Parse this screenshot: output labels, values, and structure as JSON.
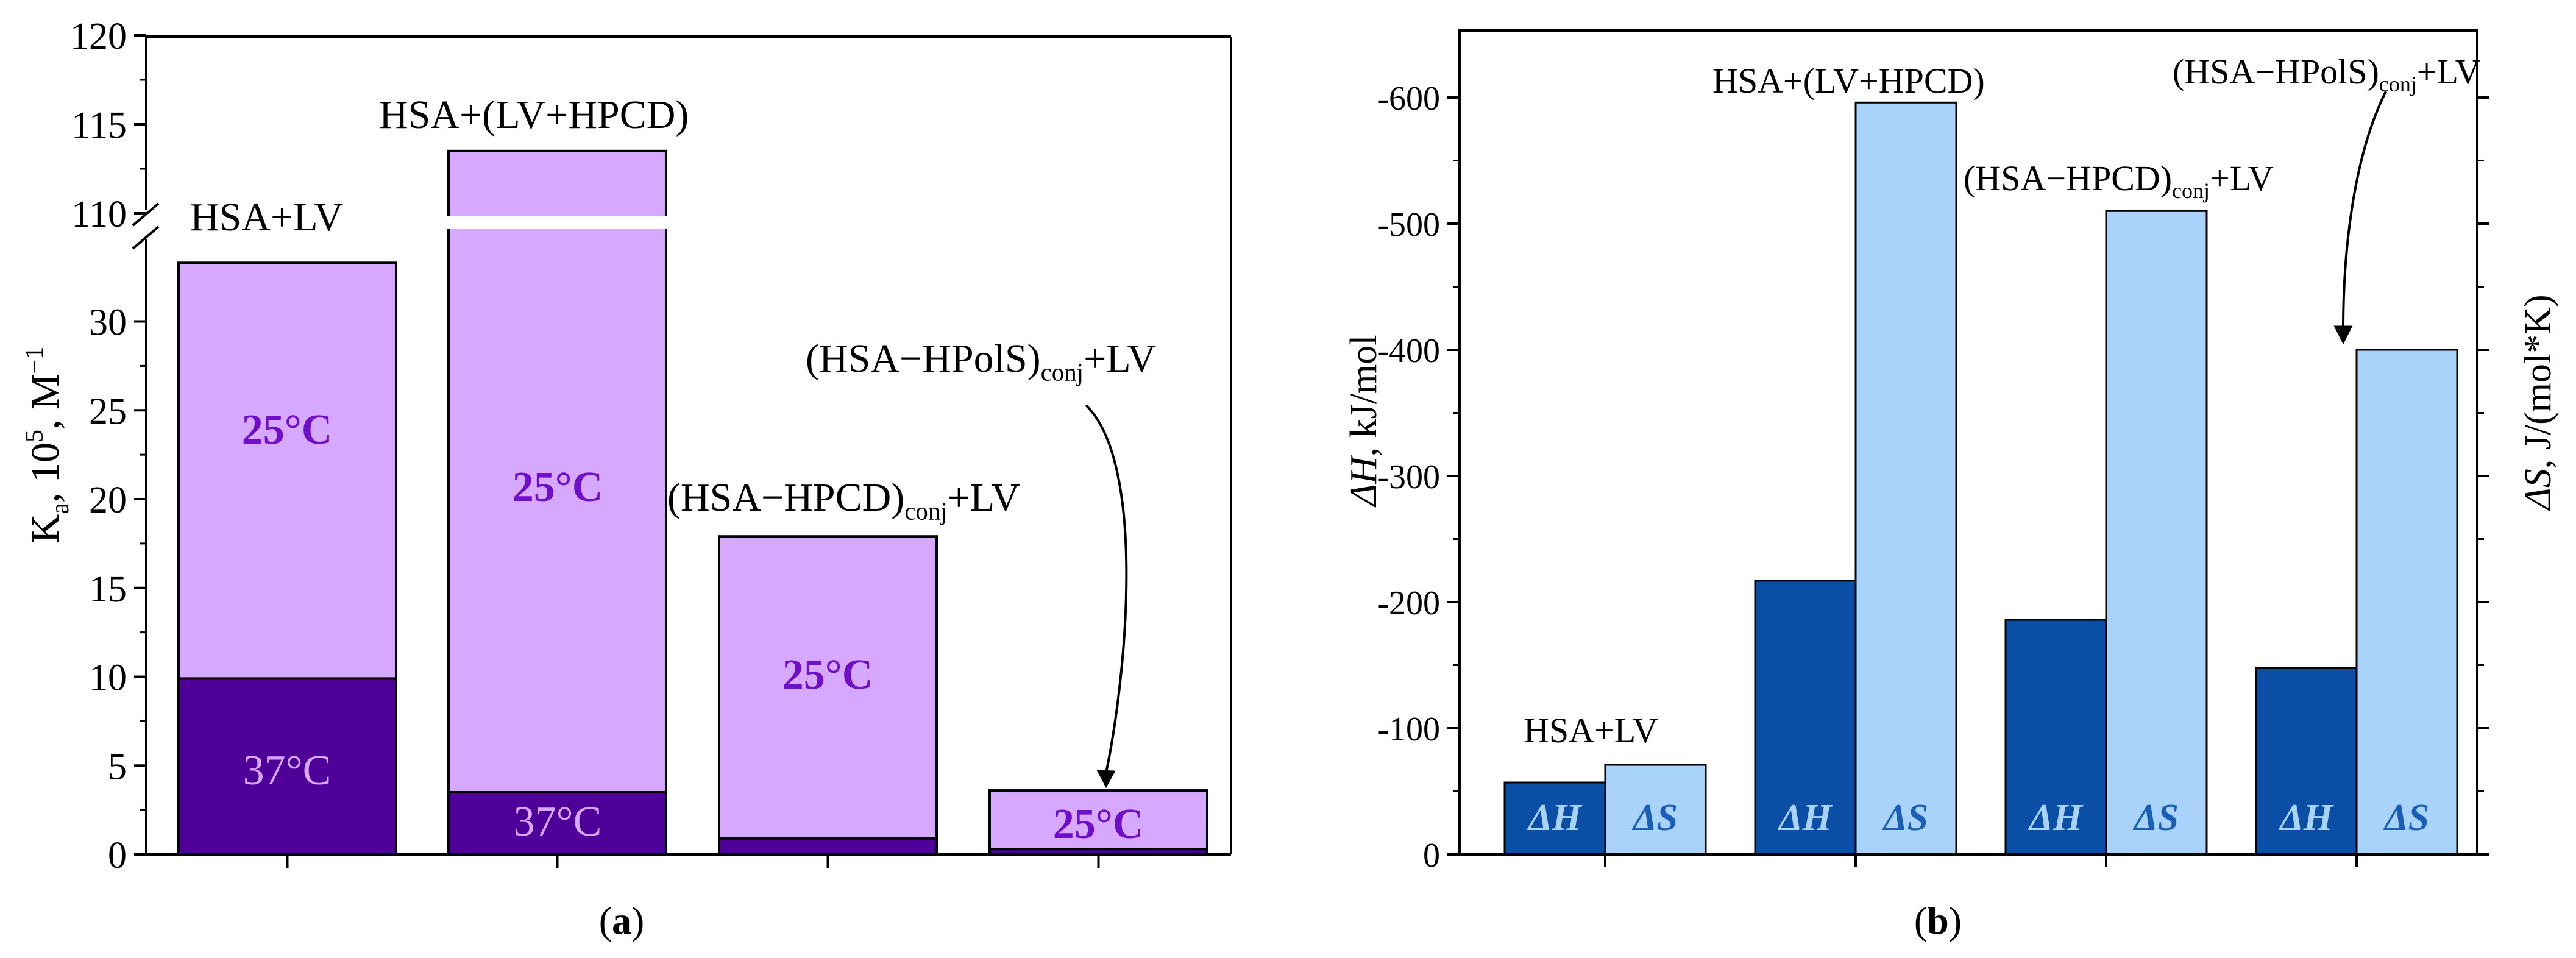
{
  "panels": {
    "a": {
      "caption_prefix": "(",
      "caption_letter": "a",
      "caption_suffix": ")"
    },
    "b": {
      "caption_prefix": "(",
      "caption_letter": "b",
      "caption_suffix": ")"
    }
  },
  "colors": {
    "purple_light": "#d6a8ff",
    "purple_dark": "#4f0099",
    "purple_label": "#6f10c8",
    "purple_label_on_dark": "#d6a8ff",
    "blue_dark": "#0a4ea6",
    "blue_light": "#a9d3fb",
    "blue_text_on_dark": "#a9d3fb",
    "blue_text_on_light": "#1a5fb4",
    "axis": "#000000",
    "background": "#ffffff"
  },
  "chart_data": [
    {
      "type": "bar",
      "panel": "a",
      "stacking": "overlaid",
      "ylabel": {
        "base": "K",
        "sub": "a",
        "mid": ", 10",
        "sup": "5",
        "unit": ", M",
        "unit_sup": "−1"
      },
      "y_axis_break": {
        "lower_range": [
          0,
          35
        ],
        "upper_range": [
          108,
          120
        ],
        "lower_ticks": [
          "0",
          "5",
          "10",
          "15",
          "20",
          "25",
          "30"
        ],
        "upper_ticks": [
          "110",
          "115",
          "120"
        ]
      },
      "categories": [
        "HSA+LV",
        "HSA+(LV+HPCD)",
        "(HSA−HPCD)conj+LV",
        "(HSA−HPolS)conj+LV"
      ],
      "category_labels": [
        {
          "main": "HSA+LV",
          "sub": "",
          "tail": ""
        },
        {
          "main": "HSA+(LV+HPCD)",
          "sub": "",
          "tail": ""
        },
        {
          "main": "(HSA−HPCD)",
          "sub": "conj",
          "tail": "+LV"
        },
        {
          "main": "(HSA−HPolS)",
          "sub": "conj",
          "tail": "+LV"
        }
      ],
      "series": [
        {
          "name": "25°C",
          "values": [
            33.3,
            113.5,
            17.9,
            3.6
          ]
        },
        {
          "name": "37°C",
          "values": [
            9.9,
            3.5,
            0.9,
            0.3
          ]
        }
      ],
      "bar_labels": [
        {
          "series": 0,
          "bar": 0,
          "text": "25°C"
        },
        {
          "series": 0,
          "bar": 1,
          "text": "25°C"
        },
        {
          "series": 0,
          "bar": 2,
          "text": "25°C"
        },
        {
          "series": 0,
          "bar": 3,
          "text": "25°C"
        },
        {
          "series": 1,
          "bar": 0,
          "text": "37°C"
        },
        {
          "series": 1,
          "bar": 1,
          "text": "37°C"
        }
      ]
    },
    {
      "type": "bar",
      "panel": "b",
      "ylabel_left": {
        "delta": "ΔH",
        "unit": ", kJ/mol"
      },
      "ylabel_right": {
        "delta": "ΔS",
        "unit": ", J/(mol*K)"
      },
      "ylim": [
        0,
        -650
      ],
      "y_ticks": [
        "0",
        "-100",
        "-200",
        "-300",
        "-400",
        "-500",
        "-600"
      ],
      "categories": [
        "HSA+LV",
        "HSA+(LV+HPCD)",
        "(HSA−HPCD)conj+LV",
        "(HSA−HPolS)conj+LV"
      ],
      "category_labels": [
        {
          "main": "HSA+LV",
          "sub": "",
          "tail": ""
        },
        {
          "main": "HSA+(LV+HPCD)",
          "sub": "",
          "tail": ""
        },
        {
          "main": "(HSA−HPCD)",
          "sub": "conj",
          "tail": "+LV"
        },
        {
          "main": "(HSA−HPolS)",
          "sub": "conj",
          "tail": "+LV"
        }
      ],
      "series": [
        {
          "name": "ΔH",
          "values": [
            -57,
            -217,
            -186,
            -148
          ]
        },
        {
          "name": "ΔS",
          "values": [
            -71,
            -596,
            -510,
            -400
          ]
        }
      ]
    }
  ]
}
